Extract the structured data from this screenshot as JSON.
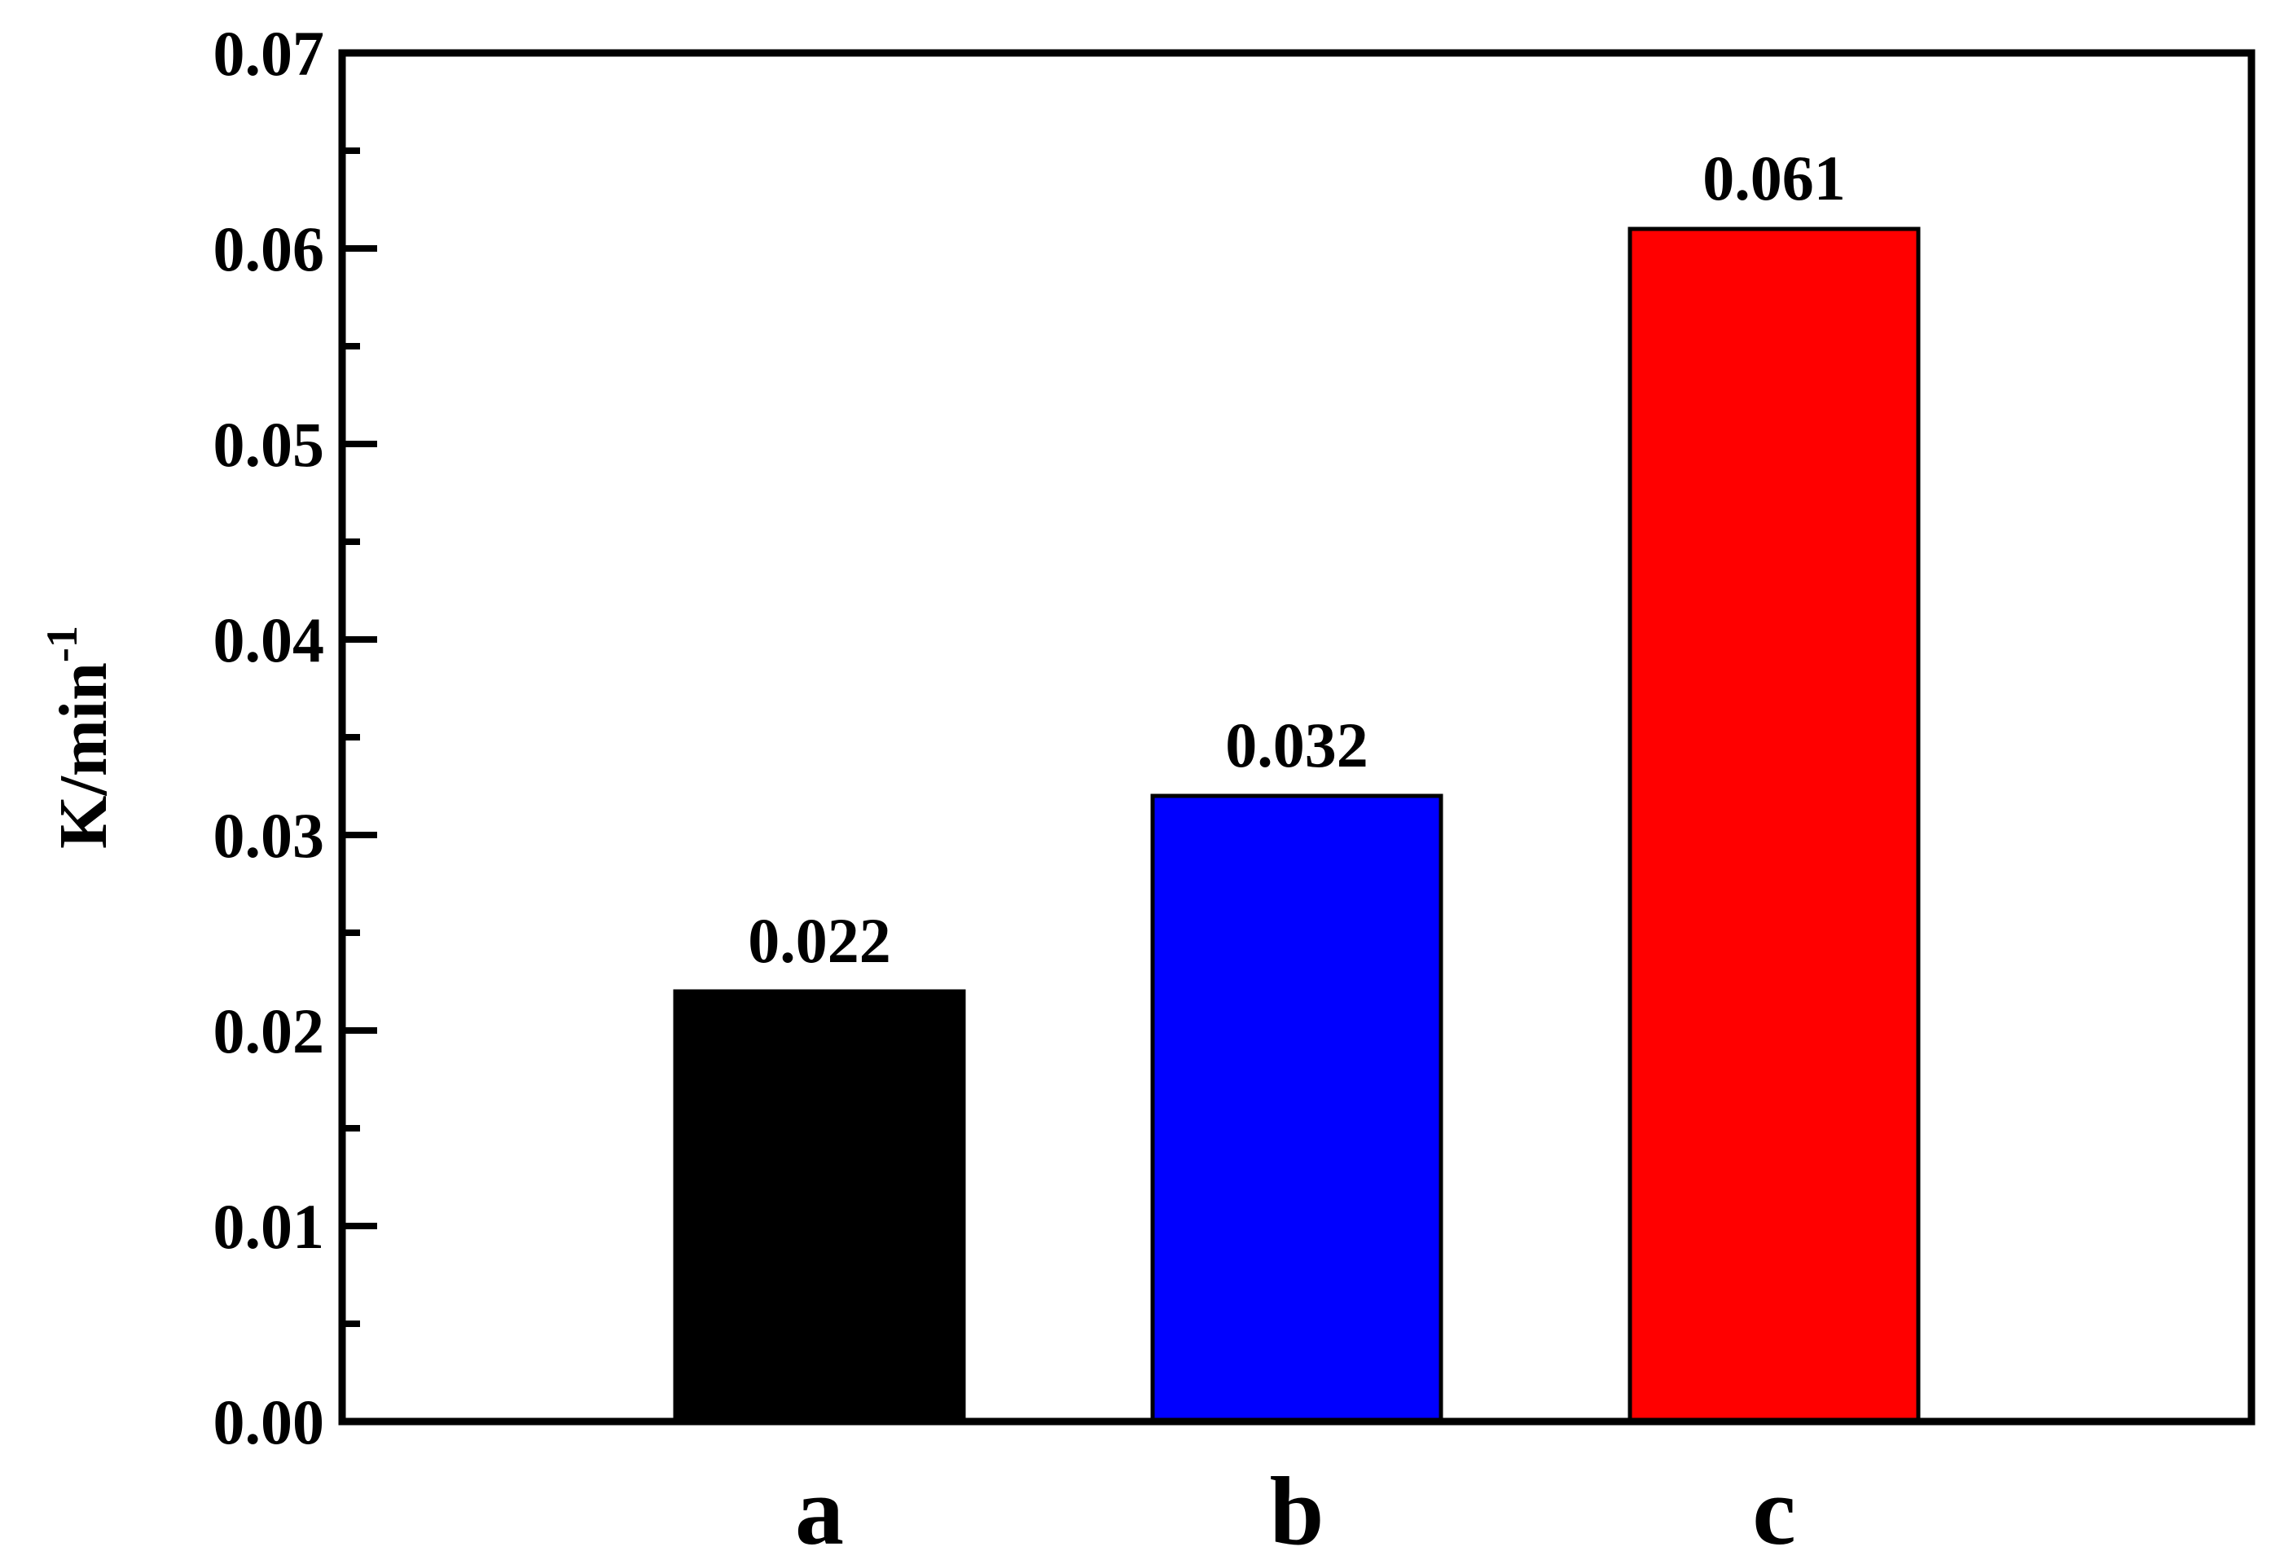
{
  "chart_data": {
    "type": "bar",
    "y_label": "K/min",
    "y_label_sup": "-1",
    "categories": [
      "a",
      "b",
      "c"
    ],
    "values": [
      0.022,
      0.032,
      0.061
    ],
    "colors": [
      "#000000",
      "#0000ff",
      "#ff0000"
    ],
    "ylim": [
      0,
      0.07
    ],
    "yticks": [
      {
        "value": 0,
        "label": "0.00"
      },
      0.01,
      0.02,
      0.03,
      0.04,
      0.05,
      0.06,
      0.07
    ],
    "minor_yticks": [
      0.005,
      0.015,
      0.025,
      0.035,
      0.045,
      0.055,
      0.065
    ],
    "grid": false
  }
}
